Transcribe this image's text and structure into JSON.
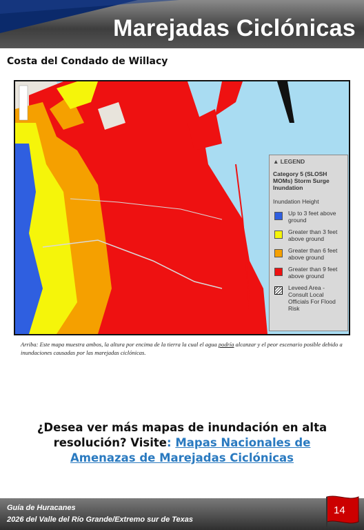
{
  "header": {
    "title": "Marejadas Ciclónicas"
  },
  "subtitle": "Costa del Condado de Willacy",
  "map": {
    "legend": {
      "heading": "LEGEND",
      "title": "Category 5 (SLOSH MOMs) Storm Surge Inundation",
      "subheading": "Inundation Height",
      "items": [
        {
          "label": "Up to 3 feet above ground",
          "color": "#2f5fe0"
        },
        {
          "label": "Greater than 3 feet above ground",
          "color": "#f5f50a"
        },
        {
          "label": "Greater than 6 feet above ground",
          "color": "#f5a000"
        },
        {
          "label": "Greater than 9 feet above ground",
          "color": "#ee1111"
        },
        {
          "label": "Leveed Area - Consult Local Officials For Flood Risk"
        }
      ]
    }
  },
  "caption": {
    "before": "Arriba: Este mapa muestra ambos, la altura por encima de la tierra la cual el agua ",
    "underlined": "podría",
    "after": " alcanzar y el peor escenario posible debido a inundaciones causadas por las marejadas ciclónicas."
  },
  "question": {
    "text": "¿Desea ver más mapas de inundación en alta resolución? Visite",
    "colon": ":",
    "link": "Mapas Nacionales de Amenazas de Marejadas Ciclónicas"
  },
  "footer": {
    "line1": "Guía de Huracanes",
    "line2": "2026 del Valle del Río Grande/Extremo sur de Texas",
    "page": 14
  }
}
